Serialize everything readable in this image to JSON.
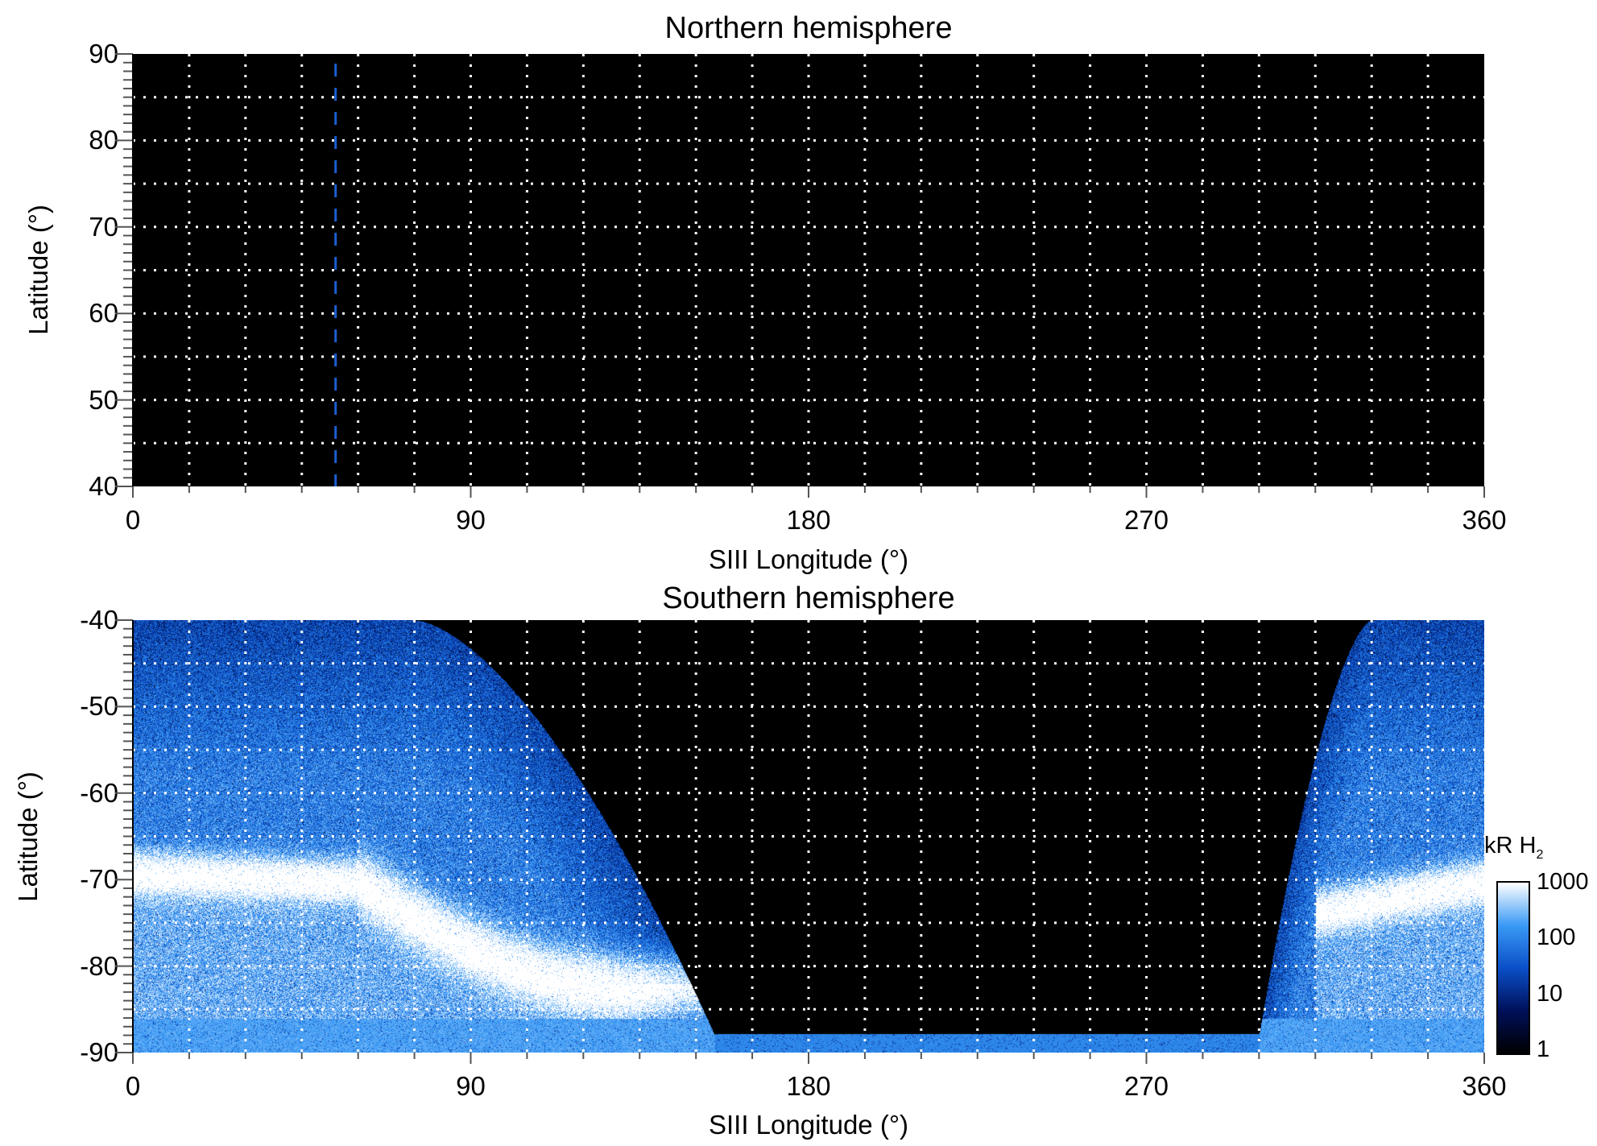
{
  "chart_data": [
    {
      "type": "heatmap",
      "title": "Northern hemisphere",
      "xlabel": "SIII Longitude (°)",
      "ylabel": "Latitude (°)",
      "xlim": [
        0,
        360
      ],
      "ylim": [
        40,
        90
      ],
      "xticks": [
        "0",
        "90",
        "180",
        "270",
        "360"
      ],
      "yticks": [
        "90",
        "80",
        "70",
        "60",
        "50",
        "40"
      ],
      "grid": {
        "x_step": 15,
        "y_step": 5,
        "style": "dotted"
      },
      "reference_line": {
        "longitude": 54,
        "color": "#1a5fd0",
        "style": "dashed"
      },
      "data_coverage": "none"
    },
    {
      "type": "heatmap",
      "title": "Southern hemisphere",
      "xlabel": "SIII Longitude (°)",
      "ylabel": "Latitude (°)",
      "xlim": [
        0,
        360
      ],
      "ylim": [
        -90,
        -40
      ],
      "xticks": [
        "0",
        "90",
        "180",
        "270",
        "360"
      ],
      "yticks": [
        "-40",
        "-50",
        "-60",
        "-70",
        "-80",
        "-90"
      ],
      "grid": {
        "x_step": 15,
        "y_step": 5,
        "style": "dotted"
      },
      "main_oval": [
        {
          "lon": 0,
          "lat": -69
        },
        {
          "lon": 60,
          "lat": -70
        },
        {
          "lon": 100,
          "lat": -79
        },
        {
          "lon": 140,
          "lat": -82
        },
        {
          "lon": 330,
          "lat": -73
        },
        {
          "lon": 360,
          "lat": -70
        }
      ],
      "colorbar": {
        "label": "kR H",
        "label_subscript": "2",
        "scale": "log",
        "range": [
          1,
          1000
        ],
        "ticks": [
          "1000",
          "100",
          "10",
          "1"
        ],
        "colors": [
          "#000000",
          "#00105a",
          "#0a4fc8",
          "#3a9af5",
          "#ffffff"
        ]
      }
    }
  ]
}
